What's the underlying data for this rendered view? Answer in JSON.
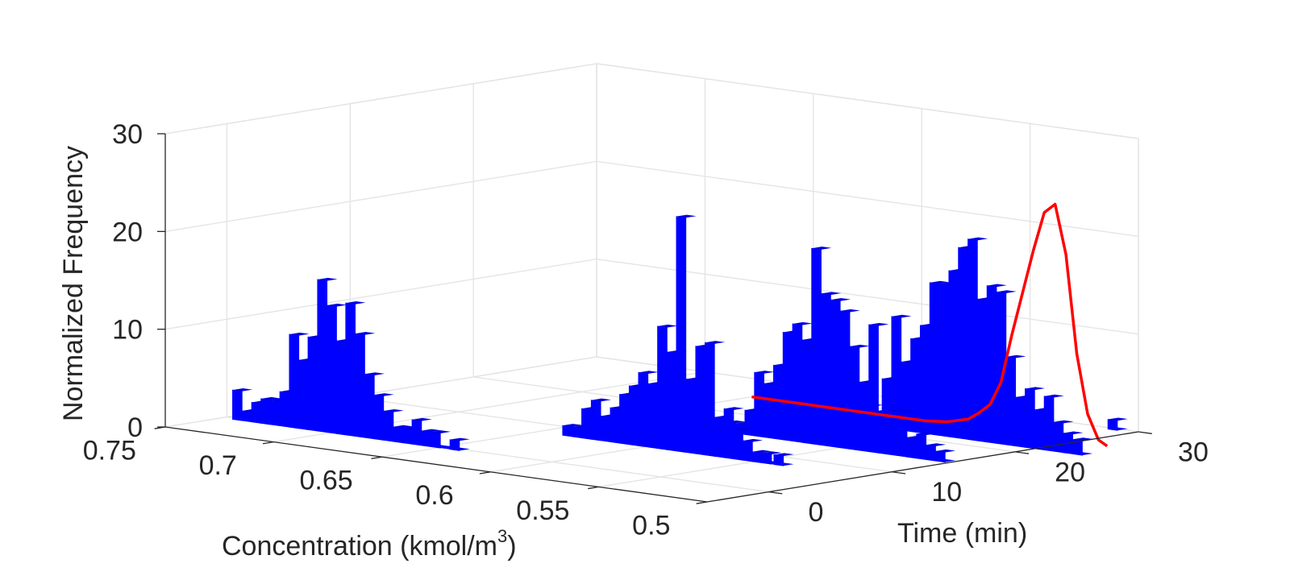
{
  "chart_data": {
    "type": "bar3d-histogram",
    "zlabel": "Normalized Frequency",
    "xlabel": "Concentration (kmol/m",
    "xlabel_sup": "3",
    "xlabel_close": ")",
    "tlabel": "Time (min)",
    "x_ticks": [
      "0.75",
      "0.7",
      "0.65",
      "0.6",
      "0.55",
      "0.5"
    ],
    "t_ticks": [
      "0",
      "10",
      "20",
      "30"
    ],
    "z_ticks": [
      "0",
      "10",
      "20",
      "30"
    ],
    "xlim": [
      0.5,
      0.75
    ],
    "tlim": [
      -5,
      30
    ],
    "zlim": [
      0,
      30
    ],
    "grid": true,
    "colors": {
      "bars": "#0000ff",
      "curve": "#ff0000"
    },
    "series": [
      {
        "time": 0,
        "bins": [
          [
            0.7428,
            3.0
          ],
          [
            0.7385,
            1.0
          ],
          [
            0.734,
            2.0
          ],
          [
            0.7297,
            2.5
          ],
          [
            0.7254,
            2.5
          ],
          [
            0.721,
            3.5
          ],
          [
            0.7166,
            9.5
          ],
          [
            0.7123,
            7.0
          ],
          [
            0.708,
            9.5
          ],
          [
            0.7036,
            15.5
          ],
          [
            0.6992,
            13.0
          ],
          [
            0.695,
            9.5
          ],
          [
            0.6906,
            13.5
          ],
          [
            0.6862,
            10.5
          ],
          [
            0.6818,
            6.5
          ],
          [
            0.6775,
            4.5
          ],
          [
            0.673,
            3.0
          ],
          [
            0.6688,
            1.5
          ],
          [
            0.6645,
            1.5
          ],
          [
            0.66,
            2.5
          ],
          [
            0.6557,
            1.5
          ],
          [
            0.6513,
            1.5
          ],
          [
            0.6425,
            1.0
          ]
        ]
      },
      {
        "time": 8,
        "bins": [
          [
            0.636,
            1.0
          ],
          [
            0.6315,
            1.0
          ],
          [
            0.6272,
            3.0
          ],
          [
            0.6228,
            4.0
          ],
          [
            0.6185,
            2.5
          ],
          [
            0.614,
            3.5
          ],
          [
            0.6097,
            5.0
          ],
          [
            0.6053,
            6.0
          ],
          [
            0.601,
            7.5
          ],
          [
            0.5965,
            6.5
          ],
          [
            0.5922,
            12.5
          ],
          [
            0.5878,
            10.0
          ],
          [
            0.5835,
            24.0
          ],
          [
            0.579,
            7.5
          ],
          [
            0.5746,
            11.0
          ],
          [
            0.5703,
            11.5
          ],
          [
            0.566,
            4.0
          ],
          [
            0.5615,
            5.0
          ],
          [
            0.5572,
            3.0
          ],
          [
            0.5528,
            2.0
          ],
          [
            0.5485,
            1.0
          ],
          [
            0.544,
            1.0
          ],
          [
            0.5385,
            1.0
          ]
        ]
      },
      {
        "time": 15,
        "bins": [
          [
            0.6005,
            1.0
          ],
          [
            0.596,
            1.0
          ],
          [
            0.5917,
            2.5
          ],
          [
            0.5873,
            6.5
          ],
          [
            0.5829,
            5.5
          ],
          [
            0.5785,
            7.5
          ],
          [
            0.5741,
            11.0
          ],
          [
            0.5697,
            12.0
          ],
          [
            0.5653,
            10.5
          ],
          [
            0.5609,
            20.0
          ],
          [
            0.5565,
            15.5
          ],
          [
            0.5521,
            15.0
          ],
          [
            0.5477,
            14.0
          ],
          [
            0.5433,
            10.5
          ],
          [
            0.5389,
            7.0
          ],
          [
            0.5345,
            13.0
          ],
          [
            0.5301,
            3.0
          ],
          [
            0.5257,
            4.5
          ],
          [
            0.5213,
            4.5
          ],
          [
            0.5169,
            2.0
          ],
          [
            0.5125,
            2.5
          ],
          [
            0.5081,
            1.5
          ],
          [
            0.5037,
            1.0
          ]
        ]
      },
      {
        "time": 22,
        "bins": [
          [
            0.577,
            2.0
          ],
          [
            0.5725,
            1.5
          ],
          [
            0.5682,
            5.0
          ],
          [
            0.5638,
            11.5
          ],
          [
            0.5594,
            7.0
          ],
          [
            0.555,
            9.5
          ],
          [
            0.5506,
            11.0
          ],
          [
            0.5462,
            15.5
          ],
          [
            0.5418,
            15.5
          ],
          [
            0.5374,
            17.0
          ],
          [
            0.533,
            19.5
          ],
          [
            0.5286,
            20.5
          ],
          [
            0.5242,
            14.5
          ],
          [
            0.5198,
            16.0
          ],
          [
            0.5154,
            15.5
          ],
          [
            0.511,
            9.0
          ],
          [
            0.5066,
            5.0
          ],
          [
            0.5022,
            6.0
          ],
          [
            0.4978,
            4.0
          ],
          [
            0.4934,
            5.5
          ],
          [
            0.489,
            3.0
          ],
          [
            0.4846,
            2.0
          ],
          [
            0.4802,
            1.5
          ]
        ]
      },
      {
        "time": 30,
        "bins": [
          [
            0.5095,
            1.0
          ]
        ]
      }
    ],
    "curve": {
      "name": "",
      "time": 25,
      "points": [
        [
          0.65,
          0.0
        ],
        [
          0.62,
          0.0
        ],
        [
          0.59,
          0.0
        ],
        [
          0.57,
          0.0
        ],
        [
          0.56,
          0.2
        ],
        [
          0.55,
          0.8
        ],
        [
          0.545,
          1.6
        ],
        [
          0.54,
          2.6
        ],
        [
          0.535,
          5.0
        ],
        [
          0.53,
          10.0
        ],
        [
          0.52,
          19.0
        ],
        [
          0.515,
          23.0
        ],
        [
          0.51,
          24.0
        ],
        [
          0.505,
          19.0
        ],
        [
          0.5,
          9.0
        ],
        [
          0.495,
          3.0
        ],
        [
          0.49,
          0.5
        ],
        [
          0.486,
          0.0
        ]
      ]
    }
  }
}
